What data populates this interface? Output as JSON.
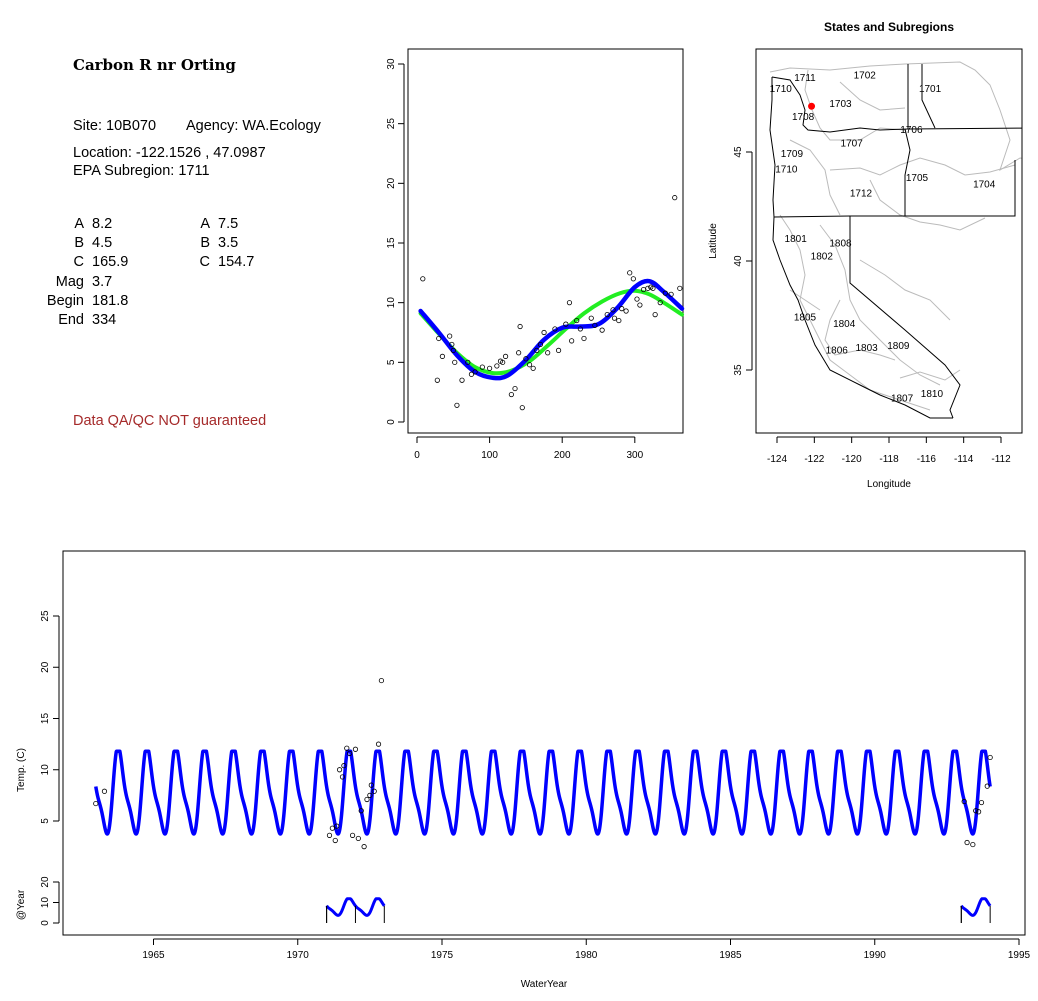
{
  "site": {
    "title": "Carbon R nr Orting",
    "site_line": "Site: 10B070",
    "agency_line": "Agency: WA.Ecology",
    "location_line": "Location: -122.1526 , 47.0987",
    "subregion_line": "EPA Subregion: 1711",
    "qa_note": "Data QA/QC NOT guaranteed"
  },
  "params": {
    "left": [
      {
        "name": "A",
        "value": "8.2"
      },
      {
        "name": "B",
        "value": "4.5"
      },
      {
        "name": "C",
        "value": "165.9"
      },
      {
        "name": "Mag",
        "value": "3.7"
      },
      {
        "name": "Begin",
        "value": "181.8"
      },
      {
        "name": "End",
        "value": "334"
      }
    ],
    "right": [
      {
        "name": "A",
        "value": "7.5"
      },
      {
        "name": "B",
        "value": "3.5"
      },
      {
        "name": "C",
        "value": "154.7"
      }
    ]
  },
  "colors": {
    "fit_blue": "#0000ff",
    "fit_green": "#22ee22",
    "site_marker": "#ff0000",
    "qa_text": "#a52a2a",
    "boundary_gray": "#bbbbbb"
  },
  "chart_data": [
    {
      "type": "scatter",
      "title": "",
      "xlabel": "",
      "ylabel": "",
      "xlim": [
        0,
        365
      ],
      "ylim": [
        0,
        31
      ],
      "xticks": [
        0,
        100,
        200,
        300
      ],
      "yticks": [
        0,
        5,
        10,
        15,
        20,
        25,
        30
      ],
      "points": [
        [
          8,
          12
        ],
        [
          28,
          3.5
        ],
        [
          30,
          7
        ],
        [
          35,
          5.5
        ],
        [
          45,
          7.2
        ],
        [
          48,
          6.5
        ],
        [
          50,
          6
        ],
        [
          52,
          5
        ],
        [
          55,
          1.4
        ],
        [
          62,
          3.5
        ],
        [
          70,
          5
        ],
        [
          75,
          4
        ],
        [
          80,
          4.2
        ],
        [
          90,
          4.6
        ],
        [
          100,
          4.5
        ],
        [
          110,
          4.7
        ],
        [
          115,
          5.1
        ],
        [
          118,
          5
        ],
        [
          122,
          5.5
        ],
        [
          130,
          2.3
        ],
        [
          135,
          2.8
        ],
        [
          140,
          5.8
        ],
        [
          142,
          8
        ],
        [
          145,
          1.2
        ],
        [
          150,
          5.3
        ],
        [
          155,
          4.8
        ],
        [
          160,
          4.5
        ],
        [
          165,
          6
        ],
        [
          170,
          6.5
        ],
        [
          175,
          7.5
        ],
        [
          180,
          5.8
        ],
        [
          190,
          7.8
        ],
        [
          195,
          6
        ],
        [
          205,
          8.2
        ],
        [
          210,
          10
        ],
        [
          213,
          6.8
        ],
        [
          220,
          8.5
        ],
        [
          225,
          7.8
        ],
        [
          230,
          7
        ],
        [
          240,
          8.7
        ],
        [
          245,
          8.1
        ],
        [
          255,
          7.7
        ],
        [
          262,
          9
        ],
        [
          270,
          9.4
        ],
        [
          272,
          8.7
        ],
        [
          278,
          8.5
        ],
        [
          282,
          9.5
        ],
        [
          288,
          9.3
        ],
        [
          293,
          12.5
        ],
        [
          298,
          12
        ],
        [
          303,
          10.3
        ],
        [
          307,
          9.8
        ],
        [
          312,
          11.1
        ],
        [
          318,
          11.2
        ],
        [
          322,
          11.3
        ],
        [
          325,
          11.2
        ],
        [
          328,
          9
        ],
        [
          335,
          10
        ],
        [
          342,
          10.8
        ],
        [
          350,
          10.7
        ],
        [
          355,
          18.8
        ],
        [
          362,
          11.2
        ]
      ],
      "fits": [
        {
          "color": "#0000ff",
          "x": [
            5,
            30,
            55,
            80,
            105,
            125,
            150,
            175,
            200,
            225,
            250,
            275,
            300,
            320,
            340,
            365
          ],
          "y": [
            9.3,
            7.5,
            5.6,
            4.2,
            3.7,
            3.9,
            5.2,
            6.9,
            7.9,
            8.0,
            8.2,
            9.5,
            11.3,
            11.8,
            10.9,
            9.5
          ]
        },
        {
          "color": "#22ee22",
          "x": [
            5,
            30,
            55,
            80,
            105,
            130,
            155,
            180,
            205,
            230,
            255,
            280,
            300,
            320,
            340,
            365
          ],
          "y": [
            9.1,
            7.4,
            5.8,
            4.6,
            4.1,
            4.3,
            5.1,
            6.4,
            7.8,
            9.1,
            10.1,
            10.8,
            11.0,
            10.7,
            10.0,
            9.0
          ]
        }
      ]
    },
    {
      "type": "map",
      "title": "States and Subregions",
      "xlabel": "Longitude",
      "ylabel": "Latitude",
      "xlim": [
        -125.2,
        -110.8
      ],
      "ylim": [
        32.2,
        49.6
      ],
      "xticks": [
        -124,
        -122,
        -120,
        -118,
        -116,
        -114,
        -112
      ],
      "yticks": [
        35,
        40,
        45
      ],
      "subregions": [
        {
          "label": "1711",
          "lon": -122.5,
          "lat": 48.4
        },
        {
          "label": "1702",
          "lon": -119.3,
          "lat": 48.5
        },
        {
          "label": "1701",
          "lon": -115.8,
          "lat": 47.9
        },
        {
          "label": "1710",
          "lon": -123.8,
          "lat": 47.9
        },
        {
          "label": "1703",
          "lon": -120.6,
          "lat": 47.2
        },
        {
          "label": "1708",
          "lon": -122.6,
          "lat": 46.6
        },
        {
          "label": "1706",
          "lon": -116.8,
          "lat": 46.0
        },
        {
          "label": "1707",
          "lon": -120.0,
          "lat": 45.4
        },
        {
          "label": "1709",
          "lon": -123.2,
          "lat": 44.9
        },
        {
          "label": "1710",
          "lon": -123.5,
          "lat": 44.2
        },
        {
          "label": "1705",
          "lon": -116.5,
          "lat": 43.8
        },
        {
          "label": "1704",
          "lon": -112.9,
          "lat": 43.5
        },
        {
          "label": "1712",
          "lon": -119.5,
          "lat": 43.1
        },
        {
          "label": "1801",
          "lon": -123.0,
          "lat": 41.0
        },
        {
          "label": "1808",
          "lon": -120.6,
          "lat": 40.8
        },
        {
          "label": "1802",
          "lon": -121.6,
          "lat": 40.2
        },
        {
          "label": "1805",
          "lon": -122.5,
          "lat": 37.4
        },
        {
          "label": "1804",
          "lon": -120.4,
          "lat": 37.1
        },
        {
          "label": "1806",
          "lon": -120.8,
          "lat": 35.9
        },
        {
          "label": "1803",
          "lon": -119.2,
          "lat": 36.0
        },
        {
          "label": "1809",
          "lon": -117.5,
          "lat": 36.1
        },
        {
          "label": "1810",
          "lon": -115.7,
          "lat": 33.9
        },
        {
          "label": "1807",
          "lon": -117.3,
          "lat": 33.7
        }
      ],
      "site": {
        "lon": -122.15,
        "lat": 47.1
      }
    },
    {
      "type": "line",
      "title": "",
      "xlabel": "WaterYear",
      "ylabel": "Temp. (C)",
      "xlim": [
        1962.9,
        1995.0
      ],
      "ylim": [
        2.6,
        30.0
      ],
      "xticks": [
        1965,
        1970,
        1975,
        1980,
        1985,
        1990,
        1995
      ],
      "yticks": [
        5,
        10,
        15,
        20,
        25
      ],
      "seasonal_fit": {
        "start": 1963.0,
        "end": 1994.0,
        "min": 3.7,
        "max": 11.8
      },
      "observed_points": [
        [
          1963.0,
          6.7
        ],
        [
          1963.3,
          7.9
        ],
        [
          1971.1,
          3.6
        ],
        [
          1971.2,
          4.3
        ],
        [
          1971.3,
          3.1
        ],
        [
          1971.35,
          4.5
        ],
        [
          1971.45,
          10
        ],
        [
          1971.55,
          9.3
        ],
        [
          1971.6,
          10.4
        ],
        [
          1971.7,
          12.1
        ],
        [
          1971.8,
          11.6
        ],
        [
          1971.9,
          3.6
        ],
        [
          1972.0,
          12
        ],
        [
          1972.1,
          3.3
        ],
        [
          1972.2,
          6
        ],
        [
          1972.3,
          2.5
        ],
        [
          1972.4,
          7.1
        ],
        [
          1972.5,
          7.5
        ],
        [
          1972.55,
          8.5
        ],
        [
          1972.65,
          7.9
        ],
        [
          1972.8,
          12.5
        ],
        [
          1972.9,
          18.7
        ],
        [
          1993.1,
          6.9
        ],
        [
          1993.2,
          2.9
        ],
        [
          1993.4,
          2.7
        ],
        [
          1993.5,
          6
        ],
        [
          1993.6,
          5.9
        ],
        [
          1993.7,
          6.8
        ],
        [
          1993.9,
          8.4
        ],
        [
          1994.0,
          11.2
        ]
      ],
      "sub_panel": {
        "ylabel": "@Year",
        "yticks": [
          0,
          10,
          20
        ],
        "windows": [
          [
            1971.0,
            1973.0
          ],
          [
            1993.0,
            1994.0
          ]
        ]
      }
    }
  ]
}
